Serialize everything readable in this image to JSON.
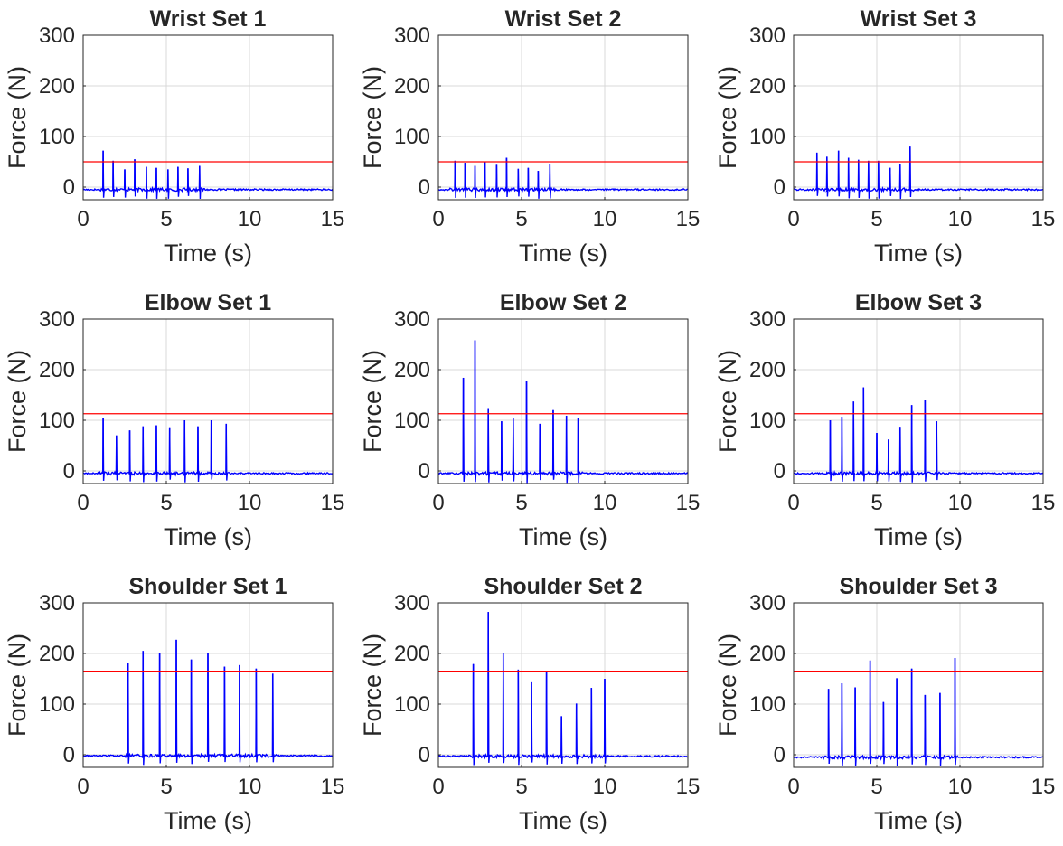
{
  "figure": {
    "colors": {
      "trace": "#0000ff",
      "threshold": "#ff0000",
      "grid": "#d9d9d9",
      "axis": "#262626"
    }
  },
  "chart_data": [
    {
      "type": "line",
      "title": "Wrist Set 1",
      "xlabel": "Time (s)",
      "ylabel": "Force (N)",
      "xlim": [
        0,
        15
      ],
      "ylim": [
        -25,
        300
      ],
      "xticks": [
        0,
        5,
        10,
        15
      ],
      "yticks": [
        0,
        100,
        200,
        300
      ],
      "grid": true,
      "threshold": 50,
      "baseline": -5,
      "peaks": [
        {
          "t": 1.2,
          "v": 72
        },
        {
          "t": 1.8,
          "v": 52
        },
        {
          "t": 2.5,
          "v": 35
        },
        {
          "t": 3.1,
          "v": 55
        },
        {
          "t": 3.8,
          "v": 40
        },
        {
          "t": 4.4,
          "v": 38
        },
        {
          "t": 5.1,
          "v": 35
        },
        {
          "t": 5.7,
          "v": 40
        },
        {
          "t": 6.3,
          "v": 37
        },
        {
          "t": 7.0,
          "v": 42
        }
      ]
    },
    {
      "type": "line",
      "title": "Wrist Set 2",
      "xlabel": "Time (s)",
      "ylabel": "Force (N)",
      "xlim": [
        0,
        15
      ],
      "ylim": [
        -25,
        300
      ],
      "xticks": [
        0,
        5,
        10,
        15
      ],
      "yticks": [
        0,
        100,
        200,
        300
      ],
      "grid": true,
      "threshold": 50,
      "baseline": -5,
      "peaks": [
        {
          "t": 1.0,
          "v": 52
        },
        {
          "t": 1.6,
          "v": 48
        },
        {
          "t": 2.2,
          "v": 42
        },
        {
          "t": 2.8,
          "v": 50
        },
        {
          "t": 3.5,
          "v": 44
        },
        {
          "t": 4.1,
          "v": 58
        },
        {
          "t": 4.8,
          "v": 36
        },
        {
          "t": 5.4,
          "v": 38
        },
        {
          "t": 6.0,
          "v": 32
        },
        {
          "t": 6.7,
          "v": 45
        }
      ]
    },
    {
      "type": "line",
      "title": "Wrist Set 3",
      "xlabel": "Time (s)",
      "ylabel": "Force (N)",
      "xlim": [
        0,
        15
      ],
      "ylim": [
        -25,
        300
      ],
      "xticks": [
        0,
        5,
        10,
        15
      ],
      "yticks": [
        0,
        100,
        200,
        300
      ],
      "grid": true,
      "threshold": 50,
      "baseline": -5,
      "peaks": [
        {
          "t": 1.4,
          "v": 68
        },
        {
          "t": 2.0,
          "v": 60
        },
        {
          "t": 2.7,
          "v": 72
        },
        {
          "t": 3.3,
          "v": 58
        },
        {
          "t": 3.9,
          "v": 54
        },
        {
          "t": 4.5,
          "v": 52
        },
        {
          "t": 5.1,
          "v": 52
        },
        {
          "t": 5.8,
          "v": 38
        },
        {
          "t": 6.4,
          "v": 46
        },
        {
          "t": 7.0,
          "v": 80
        }
      ]
    },
    {
      "type": "line",
      "title": "Elbow Set 1",
      "xlabel": "Time (s)",
      "ylabel": "Force (N)",
      "xlim": [
        0,
        15
      ],
      "ylim": [
        -25,
        300
      ],
      "xticks": [
        0,
        5,
        10,
        15
      ],
      "yticks": [
        0,
        100,
        200,
        300
      ],
      "grid": true,
      "threshold": 113,
      "baseline": -5,
      "peaks": [
        {
          "t": 1.2,
          "v": 105
        },
        {
          "t": 2.0,
          "v": 70
        },
        {
          "t": 2.8,
          "v": 80
        },
        {
          "t": 3.6,
          "v": 88
        },
        {
          "t": 4.4,
          "v": 90
        },
        {
          "t": 5.2,
          "v": 86
        },
        {
          "t": 6.1,
          "v": 100
        },
        {
          "t": 6.9,
          "v": 88
        },
        {
          "t": 7.7,
          "v": 100
        },
        {
          "t": 8.6,
          "v": 93
        }
      ]
    },
    {
      "type": "line",
      "title": "Elbow Set 2",
      "xlabel": "Time (s)",
      "ylabel": "Force (N)",
      "xlim": [
        0,
        15
      ],
      "ylim": [
        -25,
        300
      ],
      "xticks": [
        0,
        5,
        10,
        15
      ],
      "yticks": [
        0,
        100,
        200,
        300
      ],
      "grid": true,
      "threshold": 113,
      "baseline": -5,
      "peaks": [
        {
          "t": 1.5,
          "v": 184
        },
        {
          "t": 2.2,
          "v": 258
        },
        {
          "t": 3.0,
          "v": 124
        },
        {
          "t": 3.8,
          "v": 98
        },
        {
          "t": 4.5,
          "v": 104
        },
        {
          "t": 5.3,
          "v": 178
        },
        {
          "t": 6.1,
          "v": 93
        },
        {
          "t": 6.9,
          "v": 120
        },
        {
          "t": 7.7,
          "v": 109
        },
        {
          "t": 8.4,
          "v": 104
        }
      ]
    },
    {
      "type": "line",
      "title": "Elbow Set 3",
      "xlabel": "Time (s)",
      "ylabel": "Force (N)",
      "xlim": [
        0,
        15
      ],
      "ylim": [
        -25,
        300
      ],
      "xticks": [
        0,
        5,
        10,
        15
      ],
      "yticks": [
        0,
        100,
        200,
        300
      ],
      "grid": true,
      "threshold": 113,
      "baseline": -5,
      "peaks": [
        {
          "t": 2.2,
          "v": 100
        },
        {
          "t": 2.9,
          "v": 107
        },
        {
          "t": 3.6,
          "v": 137
        },
        {
          "t": 4.2,
          "v": 165
        },
        {
          "t": 5.0,
          "v": 75
        },
        {
          "t": 5.7,
          "v": 62
        },
        {
          "t": 6.4,
          "v": 87
        },
        {
          "t": 7.1,
          "v": 130
        },
        {
          "t": 7.9,
          "v": 141
        },
        {
          "t": 8.6,
          "v": 98
        }
      ]
    },
    {
      "type": "line",
      "title": "Shoulder Set 1",
      "xlabel": "Time (s)",
      "ylabel": "Force (N)",
      "xlim": [
        0,
        15
      ],
      "ylim": [
        -25,
        300
      ],
      "xticks": [
        0,
        5,
        10,
        15
      ],
      "yticks": [
        0,
        100,
        200,
        300
      ],
      "grid": true,
      "threshold": 165,
      "baseline": -2,
      "peaks": [
        {
          "t": 2.7,
          "v": 182
        },
        {
          "t": 3.6,
          "v": 205
        },
        {
          "t": 4.6,
          "v": 200
        },
        {
          "t": 5.6,
          "v": 227
        },
        {
          "t": 6.5,
          "v": 188
        },
        {
          "t": 7.5,
          "v": 200
        },
        {
          "t": 8.5,
          "v": 174
        },
        {
          "t": 9.4,
          "v": 177
        },
        {
          "t": 10.4,
          "v": 170
        },
        {
          "t": 11.4,
          "v": 160
        }
      ]
    },
    {
      "type": "line",
      "title": "Shoulder Set 2",
      "xlabel": "Time (s)",
      "ylabel": "Force (N)",
      "xlim": [
        0,
        15
      ],
      "ylim": [
        -25,
        300
      ],
      "xticks": [
        0,
        5,
        10,
        15
      ],
      "yticks": [
        0,
        100,
        200,
        300
      ],
      "grid": true,
      "threshold": 165,
      "baseline": -3,
      "peaks": [
        {
          "t": 2.1,
          "v": 179
        },
        {
          "t": 3.0,
          "v": 282
        },
        {
          "t": 3.9,
          "v": 200
        },
        {
          "t": 4.8,
          "v": 168
        },
        {
          "t": 5.6,
          "v": 143
        },
        {
          "t": 6.5,
          "v": 163
        },
        {
          "t": 7.4,
          "v": 76
        },
        {
          "t": 8.3,
          "v": 101
        },
        {
          "t": 9.2,
          "v": 132
        },
        {
          "t": 10.0,
          "v": 150
        }
      ]
    },
    {
      "type": "line",
      "title": "Shoulder Set 3",
      "xlabel": "Time (s)",
      "ylabel": "Force (N)",
      "xlim": [
        0,
        15
      ],
      "ylim": [
        -25,
        300
      ],
      "xticks": [
        0,
        5,
        10,
        15
      ],
      "yticks": [
        0,
        100,
        200,
        300
      ],
      "grid": true,
      "threshold": 165,
      "baseline": -5,
      "peaks": [
        {
          "t": 2.1,
          "v": 130
        },
        {
          "t": 2.9,
          "v": 141
        },
        {
          "t": 3.7,
          "v": 133
        },
        {
          "t": 4.6,
          "v": 186
        },
        {
          "t": 5.4,
          "v": 104
        },
        {
          "t": 6.2,
          "v": 151
        },
        {
          "t": 7.1,
          "v": 170
        },
        {
          "t": 7.9,
          "v": 118
        },
        {
          "t": 8.8,
          "v": 122
        },
        {
          "t": 9.7,
          "v": 191
        }
      ]
    }
  ]
}
